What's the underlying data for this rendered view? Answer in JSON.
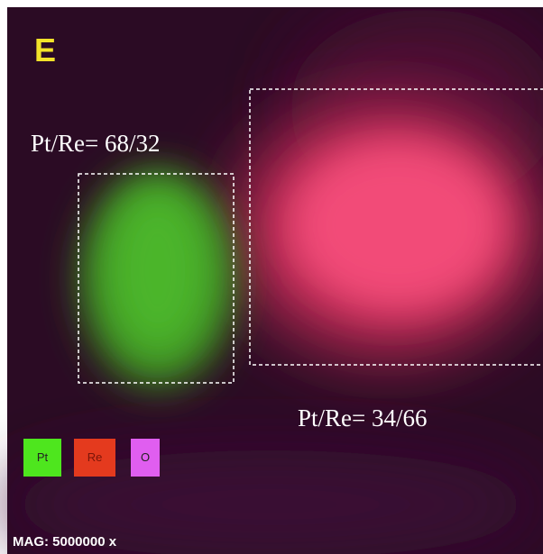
{
  "panel_label": "E",
  "regions": [
    {
      "label": "Pt/Re= 68/32"
    },
    {
      "label": "Pt/Re= 34/66"
    }
  ],
  "legend": [
    "Pt",
    "Re",
    "O"
  ],
  "magnification": "MAG: 5000000 x"
}
